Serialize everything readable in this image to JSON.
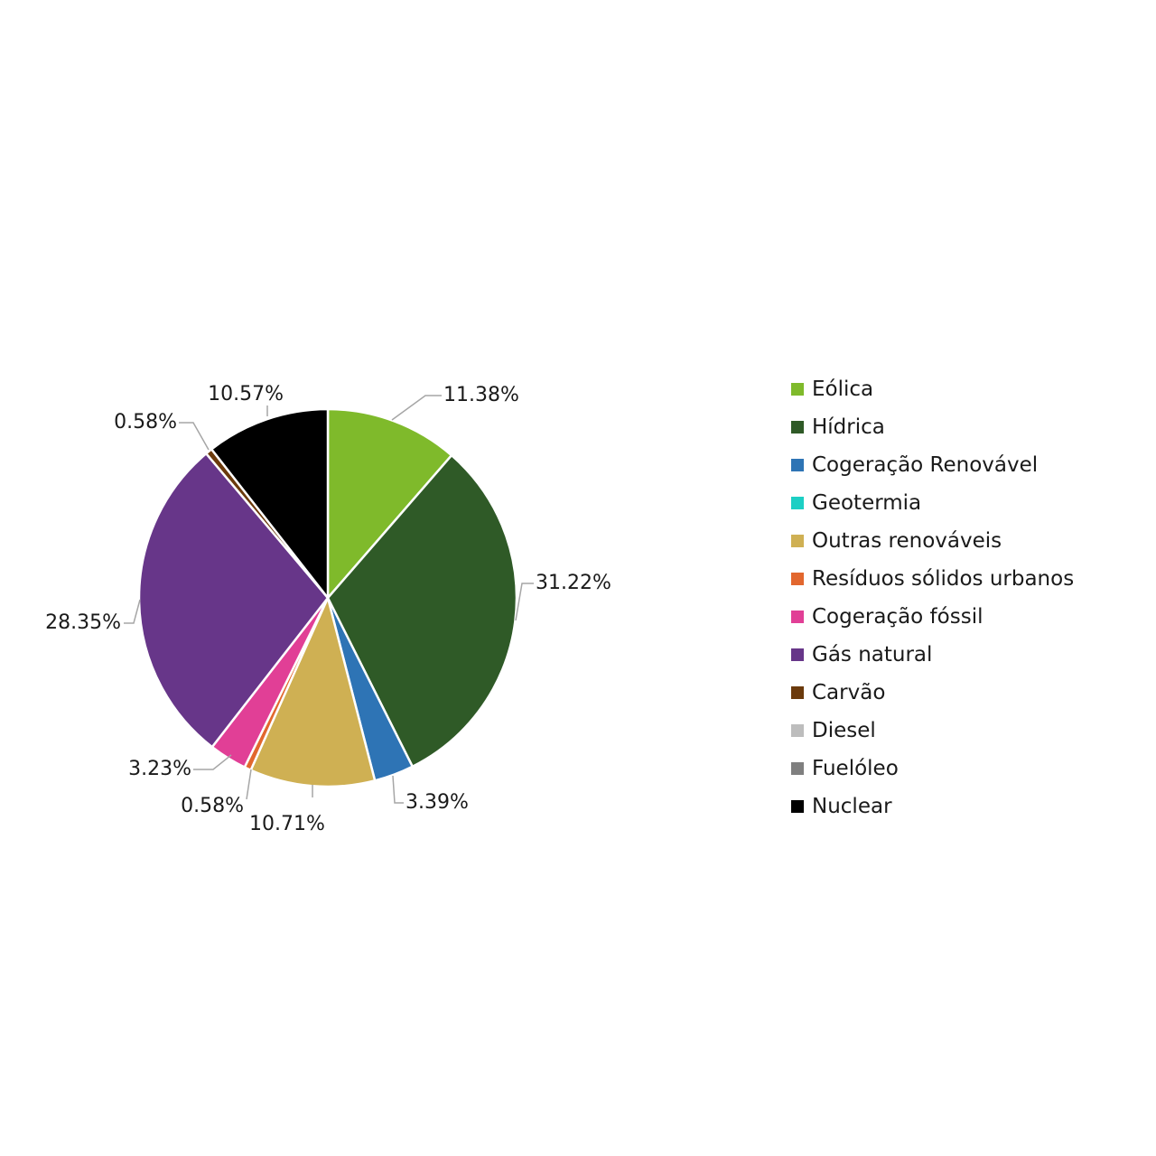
{
  "chart_data": {
    "type": "pie",
    "title": "",
    "legend_position": "right",
    "start_angle_deg": 0,
    "direction": "clockwise",
    "slices": [
      {
        "name": "Eólica",
        "value": 11.38,
        "label": "11.38%",
        "color": "#7fba2b"
      },
      {
        "name": "Hídrica",
        "value": 31.22,
        "label": "31.22%",
        "color": "#2f5a27"
      },
      {
        "name": "Cogeração Renovável",
        "value": 3.39,
        "label": "3.39%",
        "color": "#2e74b5"
      },
      {
        "name": "Geotermia",
        "value": 0,
        "label": "",
        "color": "#1ccfc4"
      },
      {
        "name": "Outras renováveis",
        "value": 10.71,
        "label": "10.71%",
        "color": "#cfb053"
      },
      {
        "name": "Resíduos sólidos urbanos",
        "value": 0.58,
        "label": "0.58%",
        "color": "#e2672e"
      },
      {
        "name": "Cogeração fóssil",
        "value": 3.23,
        "label": "3.23%",
        "color": "#e13f96"
      },
      {
        "name": "Gás natural",
        "value": 28.35,
        "label": "28.35%",
        "color": "#673689"
      },
      {
        "name": "Carvão",
        "value": 0.58,
        "label": "0.58%",
        "color": "#6b3a0c"
      },
      {
        "name": "Diesel",
        "value": 0,
        "label": "",
        "color": "#bdbdbd"
      },
      {
        "name": "Fuelóleo",
        "value": 0,
        "label": "",
        "color": "#7f7f7f"
      },
      {
        "name": "Nuclear",
        "value": 10.57,
        "label": "10.57%",
        "color": "#000000"
      }
    ]
  }
}
